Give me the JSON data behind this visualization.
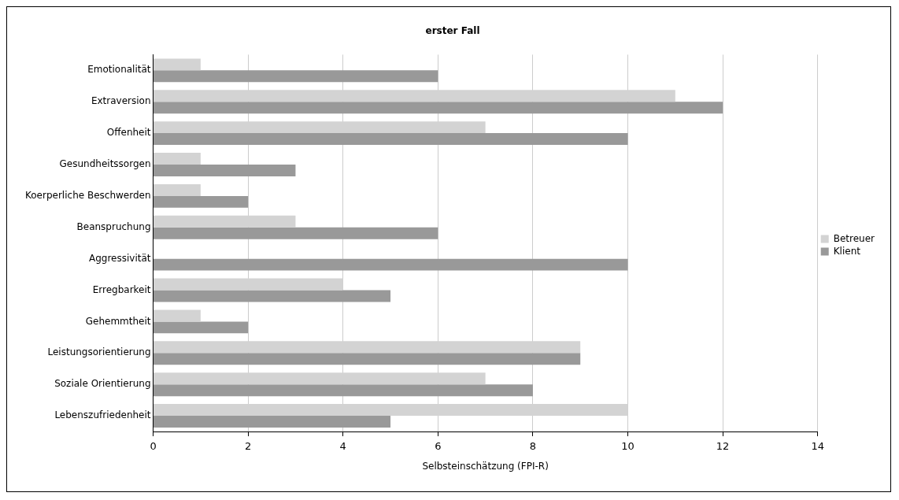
{
  "chart_data": {
    "type": "bar",
    "orientation": "horizontal",
    "title": "erster Fall",
    "xlabel": "Selbsteinschätzung (FPI-R)",
    "categories": [
      "Emotionalität",
      "Extraversion",
      "Offenheit",
      "Gesundheitssorgen",
      "Koerperliche Beschwerden",
      "Beanspruchung",
      "Aggressivität",
      "Erregbarkeit",
      "Gehemmtheit",
      "Leistungsorientierung",
      "Soziale Orientierung",
      "Lebenszufriedenheit"
    ],
    "series": [
      {
        "name": "Betreuer",
        "color": "#d3d3d3",
        "values": [
          1,
          11,
          7,
          1,
          1,
          3,
          0,
          4,
          1,
          9,
          7,
          10
        ]
      },
      {
        "name": "Klient",
        "color": "#999999",
        "values": [
          6,
          12,
          10,
          3,
          2,
          6,
          10,
          5,
          2,
          9,
          8,
          5
        ]
      }
    ],
    "xlim": [
      0,
      14
    ],
    "xticks": [
      0,
      2,
      4,
      6,
      8,
      10,
      12,
      14
    ],
    "grid": "x",
    "legend": "right"
  }
}
